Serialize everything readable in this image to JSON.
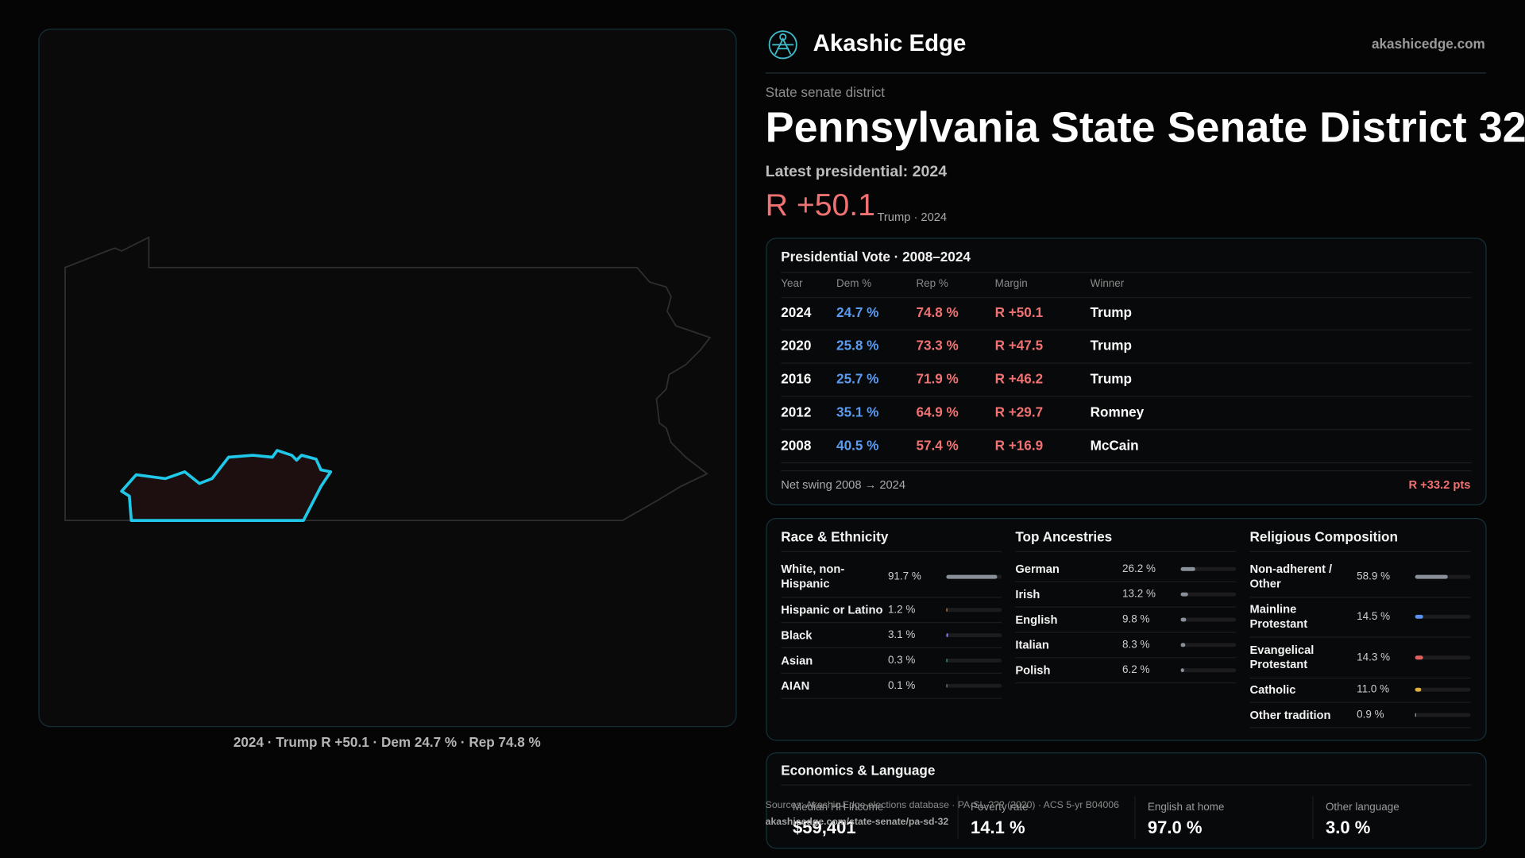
{
  "header": {
    "brand": "Akashic Edge",
    "site": "akashicedge.com"
  },
  "district": {
    "kicker": "State senate district",
    "title": "Pennsylvania State Senate District 32",
    "latest": "Latest presidential: 2024",
    "margin": "R +50.1",
    "margin_note": "Trump · 2024"
  },
  "map": {
    "caption": "2024 · Trump R +50.1 · Dem 24.7 % · Rep 74.8 %"
  },
  "presidential": {
    "title": "Presidential Vote · 2008–2024",
    "columns": [
      "Year",
      "Dem %",
      "Rep %",
      "Margin",
      "Winner"
    ],
    "rows": [
      [
        "2024",
        "24.7 %",
        "74.8 %",
        "R +50.1",
        "Trump"
      ],
      [
        "2020",
        "25.8 %",
        "73.3 %",
        "R +47.5",
        "Trump"
      ],
      [
        "2016",
        "25.7 %",
        "71.9 %",
        "R +46.2",
        "Trump"
      ],
      [
        "2012",
        "35.1 %",
        "64.9 %",
        "R +29.7",
        "Romney"
      ],
      [
        "2008",
        "40.5 %",
        "57.4 %",
        "R +16.9",
        "McCain"
      ]
    ],
    "swing_label": "Net swing 2008 → 2024",
    "swing_value": "R +33.2 pts"
  },
  "panels": [
    {
      "title": "Race & Ethnicity",
      "rows": [
        {
          "label": "White, non-Hispanic",
          "value": 91.7,
          "value_label": "91.7 %",
          "color": "#8a9099"
        },
        {
          "label": "Hispanic or Latino",
          "value": 1.2,
          "value_label": "1.2 %",
          "color": "#d98a3a"
        },
        {
          "label": "Black",
          "value": 3.1,
          "value_label": "3.1 %",
          "color": "#8a7cf0"
        },
        {
          "label": "Asian",
          "value": 0.3,
          "value_label": "0.3 %",
          "color": "#3ab88a"
        },
        {
          "label": "AIAN",
          "value": 0.1,
          "value_label": "0.1 %",
          "color": "#888888"
        }
      ]
    },
    {
      "title": "Top Ancestries",
      "rows": [
        {
          "label": "German",
          "value": 26.2,
          "value_label": "26.2 %",
          "color": "#8a9099"
        },
        {
          "label": "Irish",
          "value": 13.2,
          "value_label": "13.2 %",
          "color": "#8a9099"
        },
        {
          "label": "English",
          "value": 9.8,
          "value_label": "9.8 %",
          "color": "#8a9099"
        },
        {
          "label": "Italian",
          "value": 8.3,
          "value_label": "8.3 %",
          "color": "#8a9099"
        },
        {
          "label": "Polish",
          "value": 6.2,
          "value_label": "6.2 %",
          "color": "#8a9099"
        }
      ]
    },
    {
      "title": "Religious Composition",
      "rows": [
        {
          "label": "Non-adherent / Other",
          "value": 58.9,
          "value_label": "58.9 %",
          "color": "#8a9099"
        },
        {
          "label": "Mainline Protestant",
          "value": 14.5,
          "value_label": "14.5 %",
          "color": "#5b8ff0"
        },
        {
          "label": "Evangelical Protestant",
          "value": 14.3,
          "value_label": "14.3 %",
          "color": "#e06060"
        },
        {
          "label": "Catholic",
          "value": 11.0,
          "value_label": "11.0 %",
          "color": "#e0b040"
        },
        {
          "label": "Other tradition",
          "value": 0.9,
          "value_label": "0.9 %",
          "color": "#aaaaaa"
        }
      ]
    }
  ],
  "economics": {
    "title": "Economics & Language",
    "cells": [
      {
        "label": "Median HH income",
        "value": "$59,401"
      },
      {
        "label": "Poverty rate",
        "value": "14.1 %"
      },
      {
        "label": "English at home",
        "value": "97.0 %"
      },
      {
        "label": "Other language",
        "value": "3.0 %"
      }
    ]
  },
  "sources": {
    "line": "Sources: Akashic Edge elections database · PA-SL-??? (2020) · ACS 5-yr B04006",
    "url": "akashicedge.com/state-senate/pa-sd-32"
  }
}
